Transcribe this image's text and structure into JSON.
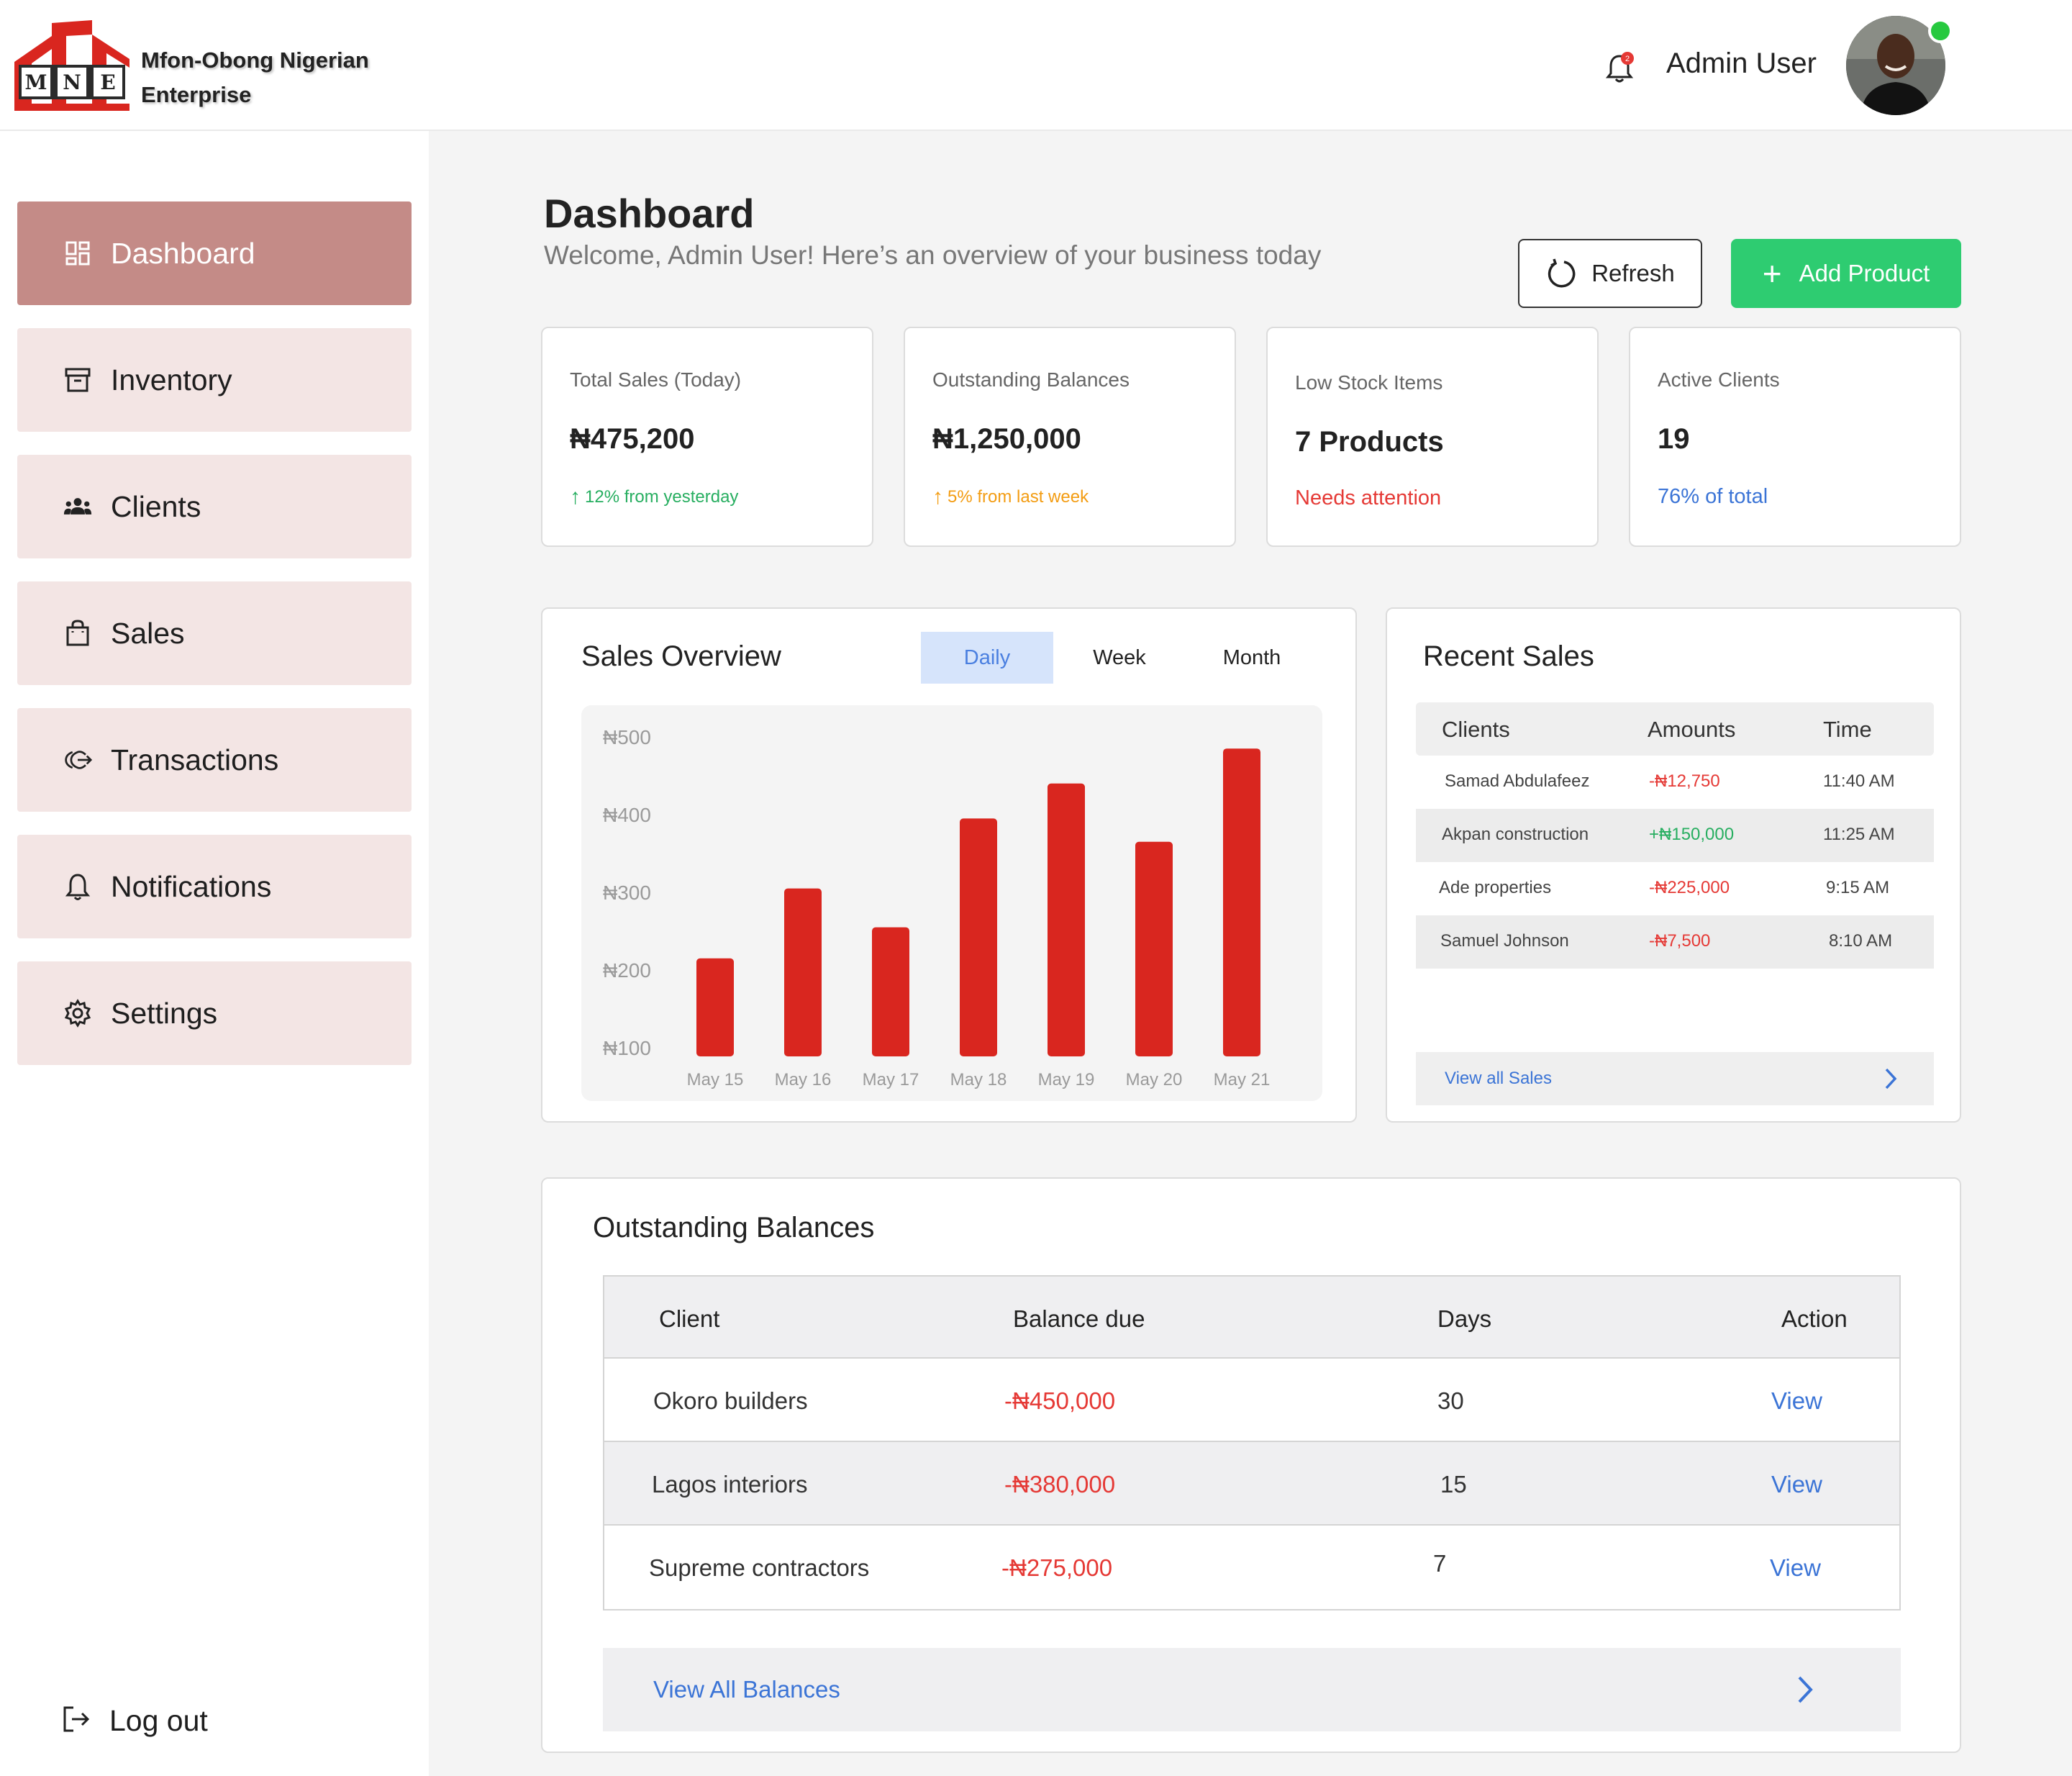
{
  "brand": {
    "name": "Mfon-Obong Nigerian Enterprise",
    "logo_letters": [
      "M",
      "N",
      "E"
    ]
  },
  "header": {
    "user_name": "Admin User",
    "notification_count": "2"
  },
  "sidebar": {
    "items": [
      {
        "label": "Dashboard",
        "icon": "dashboard-icon",
        "active": true
      },
      {
        "label": "Inventory",
        "icon": "archive-icon"
      },
      {
        "label": "Clients",
        "icon": "users-icon"
      },
      {
        "label": "Sales",
        "icon": "shopping-bag-icon"
      },
      {
        "label": "Transactions",
        "icon": "transaction-icon"
      },
      {
        "label": "Notifications",
        "icon": "bell-icon"
      },
      {
        "label": "Settings",
        "icon": "gear-icon"
      }
    ],
    "logout_label": "Log out"
  },
  "page": {
    "title": "Dashboard",
    "subtitle": "Welcome, Admin User! Here’s an overview of your business today",
    "refresh_label": "Refresh",
    "add_product_label": "Add Product"
  },
  "stats": [
    {
      "label": "Total Sales (Today)",
      "value": "₦475,200",
      "note": "12% from yesterday",
      "note_color": "#27ae60"
    },
    {
      "label": "Outstanding Balances",
      "value": "₦1,250,000",
      "note": "5% from last week",
      "note_color": "#f39c12"
    },
    {
      "label": "Low Stock Items",
      "value": "7 Products",
      "note": "Needs attention",
      "note_color": "#e53935"
    },
    {
      "label": "Active Clients",
      "value": "19",
      "note": "76% of total",
      "note_color": "#3b74d6"
    }
  ],
  "sales_overview": {
    "title": "Sales Overview",
    "tabs": [
      "Daily",
      "Week",
      "Month"
    ],
    "active_tab": "Daily"
  },
  "chart_data": {
    "type": "bar",
    "categories": [
      "May 15",
      "May 16",
      "May 17",
      "May 18",
      "May 19",
      "May 20",
      "May 21"
    ],
    "values": [
      215,
      305,
      255,
      395,
      440,
      365,
      485
    ],
    "ytick_labels": [
      "₦500",
      "₦400",
      "₦300",
      "₦200",
      "₦100"
    ],
    "yticks": [
      500,
      400,
      300,
      200,
      100
    ],
    "ylim": [
      100,
      500
    ],
    "bar_color": "#d9261f",
    "grid": false
  },
  "recent_sales": {
    "title": "Recent Sales",
    "columns": [
      "Clients",
      "Amounts",
      "Time"
    ],
    "rows": [
      {
        "client": "Samad Abdulafeez",
        "amount": "-₦12,750",
        "time": "11:40 AM",
        "type": "debit"
      },
      {
        "client": "Akpan construction",
        "amount": "+₦150,000",
        "time": "11:25 AM",
        "type": "credit"
      },
      {
        "client": "Ade properties",
        "amount": "-₦225,000",
        "time": "9:15 AM",
        "type": "debit"
      },
      {
        "client": "Samuel Johnson",
        "amount": "-₦7,500",
        "time": "8:10 AM",
        "type": "debit"
      }
    ],
    "footer_label": "View all Sales"
  },
  "outstanding": {
    "title": "Outstanding Balances",
    "columns": [
      "Client",
      "Balance due",
      "Days",
      "Action"
    ],
    "rows": [
      {
        "client": "Okoro builders",
        "balance": "-₦450,000",
        "days": "30",
        "action": "View"
      },
      {
        "client": "Lagos interiors",
        "balance": "-₦380,000",
        "days": "15",
        "action": "View"
      },
      {
        "client": "Supreme contractors",
        "balance": "-₦275,000",
        "days": "7",
        "action": "View"
      }
    ],
    "footer_label": "View All Balances"
  }
}
